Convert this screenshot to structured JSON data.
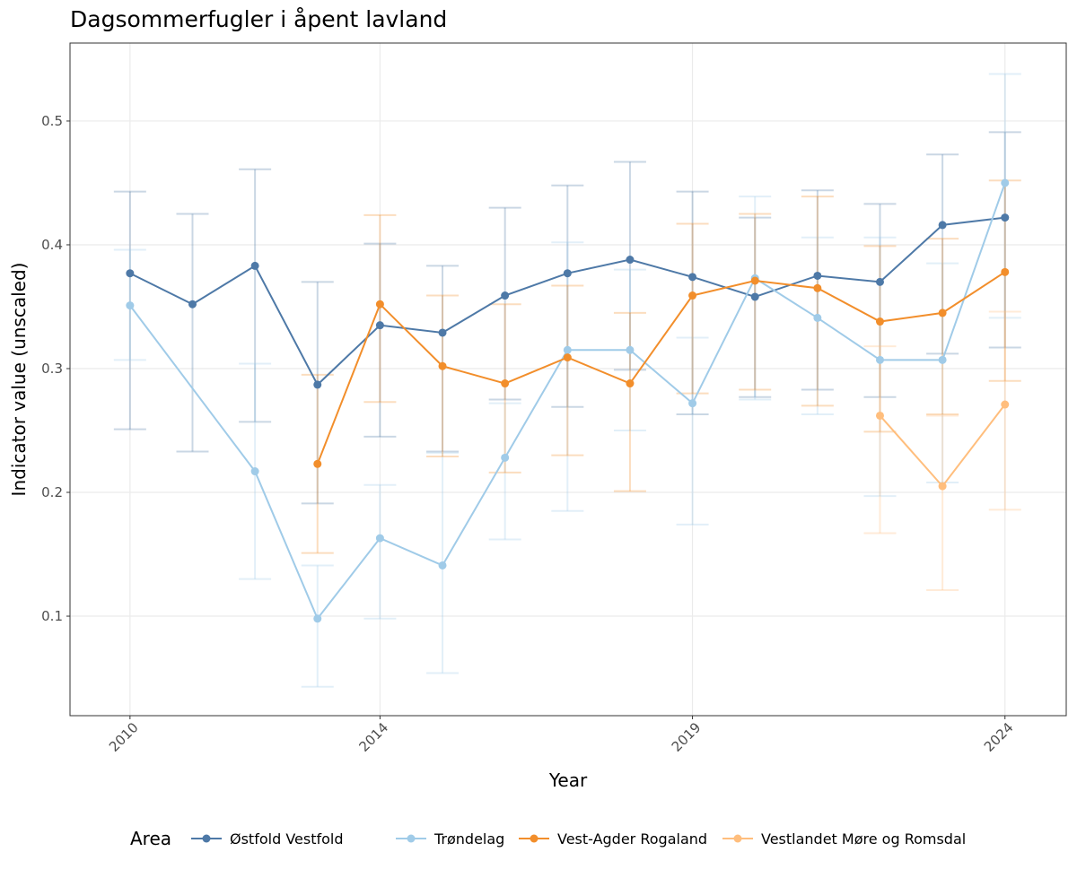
{
  "chart_data": {
    "type": "line",
    "title": "Dagsommerfugler i åpent lavland",
    "xlabel": "Year",
    "ylabel": "Indicator value (unscaled)",
    "xlim": [
      2009.04,
      2024.98
    ],
    "ylim": [
      0.0196,
      0.563
    ],
    "xticks": [
      2010,
      2014,
      2019,
      2024
    ],
    "yticks": [
      0.1,
      0.2,
      0.3,
      0.4,
      0.5
    ],
    "ytick_labels": [
      "0.1",
      "0.2",
      "0.3",
      "0.4",
      "0.5"
    ],
    "grid": true,
    "legend": {
      "title": "Area",
      "placement": "bottom"
    },
    "series": [
      {
        "name": "Østfold Vestfold",
        "color": "#4e79a7",
        "x": [
          2010,
          2011,
          2012,
          2013,
          2014,
          2015,
          2016,
          2017,
          2018,
          2019,
          2020,
          2021,
          2022,
          2023,
          2024
        ],
        "y": [
          0.377,
          0.352,
          0.383,
          0.287,
          0.335,
          0.329,
          0.359,
          0.377,
          0.388,
          0.374,
          0.358,
          0.375,
          0.37,
          0.416,
          0.422
        ],
        "lower": [
          0.251,
          0.233,
          0.257,
          0.191,
          0.245,
          0.233,
          0.275,
          0.269,
          0.299,
          0.263,
          0.277,
          0.283,
          0.277,
          0.312,
          0.317
        ],
        "upper": [
          0.443,
          0.425,
          0.461,
          0.37,
          0.401,
          0.383,
          0.43,
          0.448,
          0.467,
          0.443,
          0.422,
          0.444,
          0.433,
          0.473,
          0.491
        ]
      },
      {
        "name": "Trøndelag",
        "color": "#a0cbe8",
        "x": [
          2010,
          2012,
          2013,
          2014,
          2015,
          2016,
          2017,
          2018,
          2019,
          2020,
          2021,
          2022,
          2023,
          2024
        ],
        "y": [
          0.351,
          0.217,
          0.098,
          0.163,
          0.141,
          0.228,
          0.315,
          0.315,
          0.272,
          0.373,
          0.341,
          0.307,
          0.307,
          0.45
        ],
        "lower": [
          0.307,
          0.13,
          0.043,
          0.098,
          0.054,
          0.162,
          0.185,
          0.25,
          0.174,
          0.275,
          0.263,
          0.197,
          0.208,
          0.341
        ],
        "upper": [
          0.396,
          0.304,
          0.141,
          0.206,
          0.232,
          0.272,
          0.402,
          0.38,
          0.325,
          0.439,
          0.406,
          0.406,
          0.385,
          0.538
        ]
      },
      {
        "name": "Vest-Agder Rogaland",
        "color": "#f28e2b",
        "x": [
          2013,
          2014,
          2015,
          2016,
          2017,
          2018,
          2019,
          2020,
          2021,
          2022,
          2023,
          2024
        ],
        "y": [
          0.223,
          0.352,
          0.302,
          0.288,
          0.309,
          0.288,
          0.359,
          0.371,
          0.365,
          0.338,
          0.345,
          0.378
        ],
        "lower": [
          0.151,
          0.273,
          0.229,
          0.216,
          0.23,
          0.201,
          0.28,
          0.283,
          0.27,
          0.249,
          0.263,
          0.29
        ],
        "upper": [
          0.295,
          0.424,
          0.359,
          0.352,
          0.367,
          0.345,
          0.417,
          0.425,
          0.439,
          0.399,
          0.405,
          0.452
        ]
      },
      {
        "name": "Vestlandet Møre og Romsdal",
        "color": "#ffbe7d",
        "x": [
          2022,
          2023,
          2024
        ],
        "y": [
          0.262,
          0.205,
          0.271
        ],
        "lower": [
          0.167,
          0.121,
          0.186
        ],
        "upper": [
          0.318,
          0.262,
          0.346
        ]
      }
    ]
  }
}
